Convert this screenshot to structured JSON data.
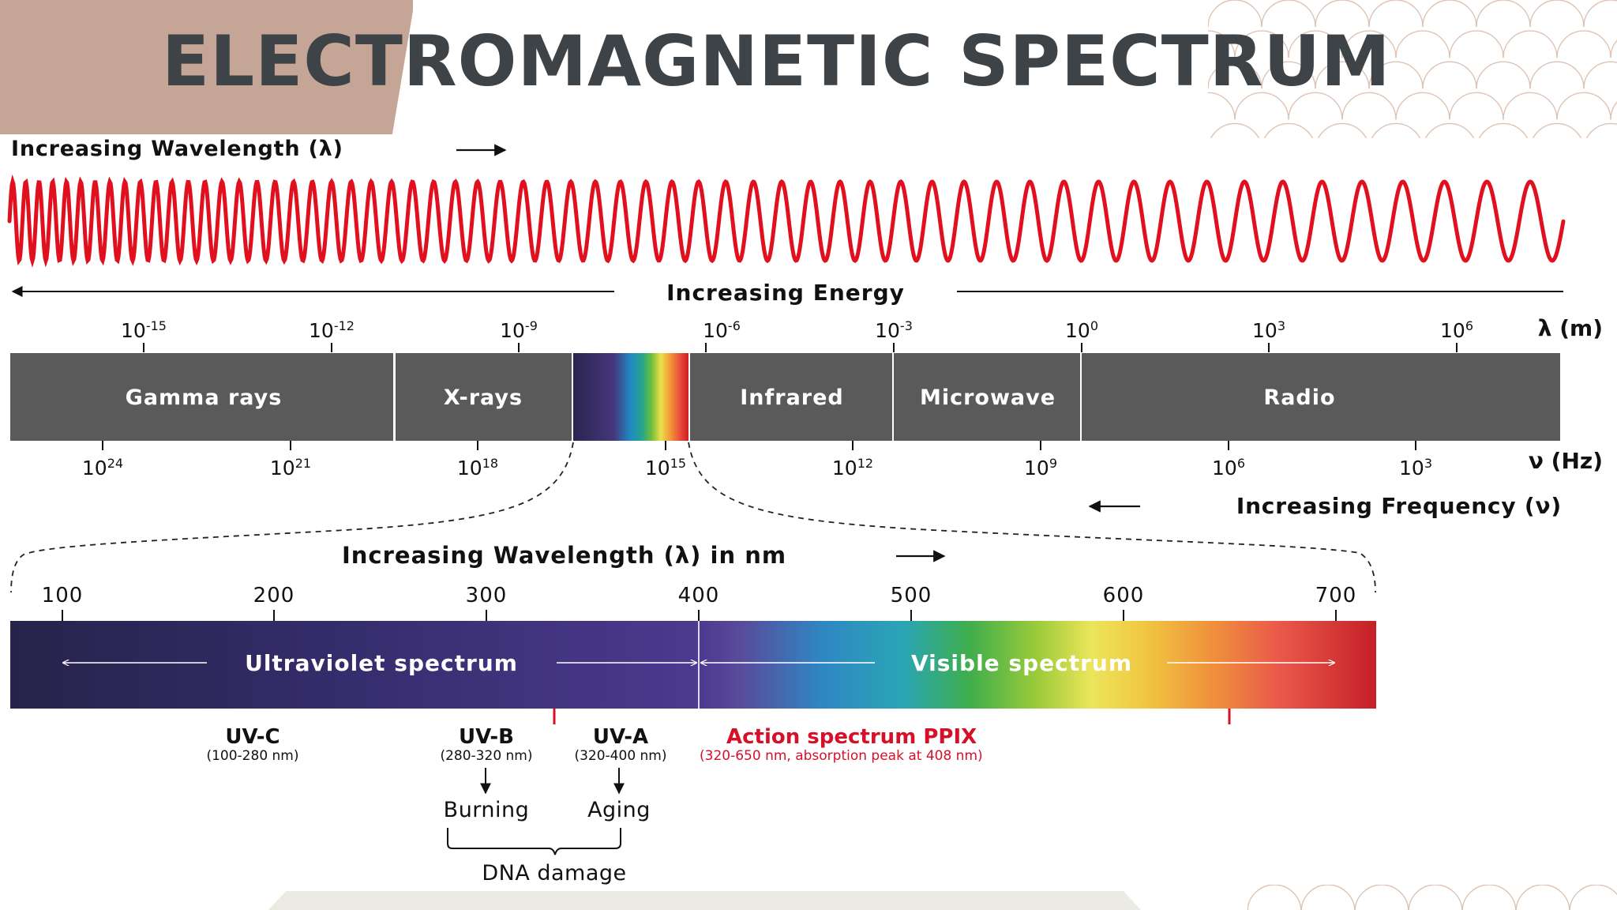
{
  "slide": {
    "title": "ELECTROMAGNETIC SPECTRUM"
  },
  "colors": {
    "wave": "#e0101e",
    "band": "#5a5a5a",
    "accent_red": "#d7102a",
    "deco": "#c5a596",
    "title": "#3e4347"
  },
  "top_diagram": {
    "wavelength_heading": "Increasing Wavelength (λ)",
    "energy_label": "Increasing Energy",
    "frequency_heading": "Increasing Frequency (ν)",
    "wavelength_unit": "λ (m)",
    "frequency_unit": "ν (Hz)",
    "wavelength_ticks": [
      {
        "base": "10",
        "exp": "-15"
      },
      {
        "base": "10",
        "exp": "-12"
      },
      {
        "base": "10",
        "exp": "-9"
      },
      {
        "base": "10",
        "exp": "-6"
      },
      {
        "base": "10",
        "exp": "-3"
      },
      {
        "base": "10",
        "exp": "0"
      },
      {
        "base": "10",
        "exp": "3"
      },
      {
        "base": "10",
        "exp": "6"
      }
    ],
    "frequency_ticks": [
      {
        "base": "10",
        "exp": "24"
      },
      {
        "base": "10",
        "exp": "21"
      },
      {
        "base": "10",
        "exp": "18"
      },
      {
        "base": "10",
        "exp": "15"
      },
      {
        "base": "10",
        "exp": "12"
      },
      {
        "base": "10",
        "exp": "9"
      },
      {
        "base": "10",
        "exp": "6"
      },
      {
        "base": "10",
        "exp": "3"
      }
    ],
    "bands": [
      "Gamma rays",
      "X-rays",
      "Infrared",
      "Microwave",
      "Radio"
    ]
  },
  "detail": {
    "heading": "Increasing Wavelength (λ) in nm",
    "ticks": [
      "100",
      "200",
      "300",
      "400",
      "500",
      "600",
      "700"
    ],
    "uv_label": "Ultraviolet spectrum",
    "visible_label": "Visible spectrum",
    "uvc": {
      "name": "UV-C",
      "range": "(100-280 nm)"
    },
    "uvb": {
      "name": "UV-B",
      "range": "(280-320 nm)",
      "effect": "Burning"
    },
    "uva": {
      "name": "UV-A",
      "range": "(320-400 nm)",
      "effect": "Aging"
    },
    "dna": "DNA damage",
    "action": {
      "name": "Action spectrum PPIX",
      "range": "(320-650 nm, absorption peak at 408 nm)"
    }
  }
}
